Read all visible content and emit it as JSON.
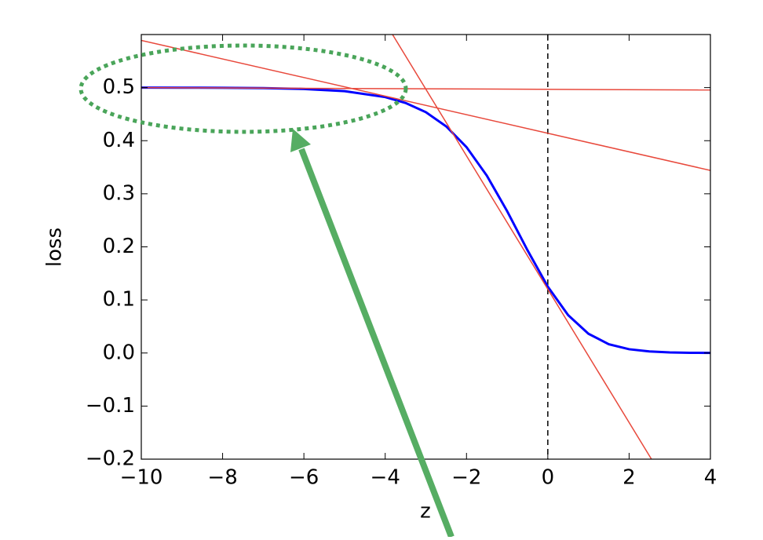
{
  "chart_data": {
    "type": "line",
    "xlabel": "z",
    "ylabel": "loss",
    "xlim": [
      -10,
      4
    ],
    "ylim": [
      -0.2,
      0.6
    ],
    "xticks": [
      {
        "value": -10,
        "label": "−10"
      },
      {
        "value": -8,
        "label": "−8"
      },
      {
        "value": -6,
        "label": "−6"
      },
      {
        "value": -4,
        "label": "−4"
      },
      {
        "value": -2,
        "label": "−2"
      },
      0,
      2,
      4
    ],
    "yticks": [
      {
        "value": -0.2,
        "label": "−0.2"
      },
      {
        "value": -0.1,
        "label": "−0.1"
      },
      {
        "value": 0,
        "label": "0.0"
      },
      0.1,
      0.2,
      0.3,
      0.4,
      0.5
    ],
    "vline": 0,
    "series": [
      {
        "color": "#0000ff",
        "x": [
          -10,
          -9,
          -8,
          -7,
          -6,
          -5,
          -4,
          -3.5,
          -3,
          -2.5,
          -2,
          -1.5,
          -1,
          -0.5,
          0,
          0.5,
          1,
          1.5,
          2,
          2.5,
          3,
          3.5,
          4
        ],
        "values": [
          0.5,
          0.4999,
          0.4997,
          0.4991,
          0.4975,
          0.4933,
          0.4822,
          0.4711,
          0.4537,
          0.427,
          0.3879,
          0.3342,
          0.2672,
          0.1937,
          0.125,
          0.0713,
          0.0362,
          0.0166,
          0.0071,
          0.0029,
          0.0011,
          0.0004,
          0.0002
        ]
      },
      {
        "color": "#e8493c",
        "x": [
          -10,
          4
        ],
        "values": [
          0.5,
          0.4955
        ]
      },
      {
        "color": "#e8493c",
        "x": [
          -10,
          4
        ],
        "values": [
          0.589,
          0.344
        ]
      },
      {
        "color": "#e8493c",
        "x": [
          -3.82,
          2.55
        ],
        "values": [
          0.6,
          -0.2
        ]
      }
    ]
  }
}
